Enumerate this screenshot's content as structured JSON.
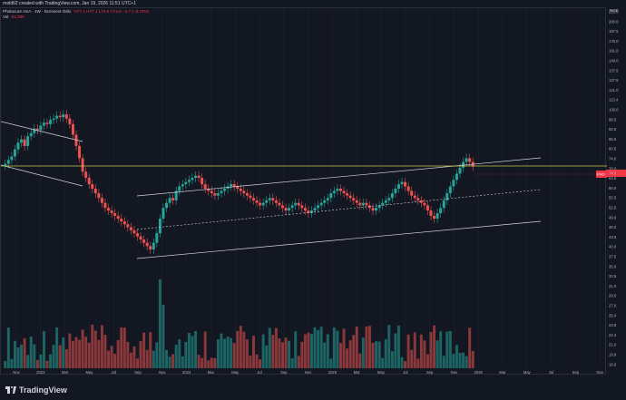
{
  "header": {
    "credit": "rnold62 created with TradingView.com, Jan 19, 2026 11:51 UTC+1",
    "symbol": "Photocure ASA · 1W · Euronext Oslo",
    "ohlc": "O77.1 H77.1 L74.6 C74.6 −2.7 (−3.73%)",
    "vol_label": "Vol",
    "vol_value": "51.38K"
  },
  "price_axis": {
    "currency": "NOK",
    "labels": [
      "215.0",
      "200.0",
      "187.5",
      "175.0",
      "161.0",
      "149.0",
      "137.5",
      "127.5",
      "121.0",
      "113.4",
      "106.0",
      "98.5",
      "92.5",
      "86.5",
      "80.5",
      "74.6",
      "70.0",
      "64.5",
      "60.0",
      "55.5",
      "52.5",
      "49.0",
      "46.0",
      "43.5",
      "40.0",
      "37.5",
      "35.0",
      "32.5",
      "31.0",
      "29.0",
      "27.0",
      "25.4",
      "23.9",
      "22.4",
      "21.0",
      "19.9",
      "18.9"
    ],
    "current_price_tag": "74.6",
    "current_symbol_tag": "PHO"
  },
  "time_axis": {
    "labels": [
      "Nov",
      "2023",
      "Mar",
      "May",
      "Jul",
      "Sep",
      "Nov",
      "2024",
      "Mar",
      "May",
      "Jul",
      "Sep",
      "Nov",
      "2025",
      "Mar",
      "May",
      "Jul",
      "Sep",
      "Nov",
      "2026",
      "Mar",
      "May",
      "Jul",
      "Sep",
      "Nov"
    ]
  },
  "colors": {
    "background": "#131722",
    "up": "#26a69a",
    "down": "#ef5350",
    "trend_line": "#d1d4dc",
    "horizontal_line": "#c8c84a",
    "last_price_tag": "#f23645"
  },
  "footer": {
    "brand": "TradingView"
  },
  "chart_data": {
    "type": "candlestick",
    "title": "",
    "price_range_approx": [
      38,
      215
    ],
    "candle_closes": [
      76,
      78,
      80,
      84,
      88,
      90,
      86,
      92,
      94,
      97,
      96,
      99,
      101,
      100,
      103,
      104,
      106,
      105,
      107,
      104,
      100,
      93,
      86,
      79,
      72,
      69,
      66,
      64,
      62,
      60,
      58,
      56,
      55,
      54,
      53,
      52,
      51,
      50,
      49,
      48,
      47,
      46,
      45,
      44,
      43,
      42,
      44,
      47,
      52,
      56,
      58,
      60,
      59,
      63,
      65,
      66,
      67,
      68,
      69,
      70,
      69,
      66,
      64,
      63,
      62,
      61,
      62,
      63,
      64,
      65,
      66,
      65,
      64,
      63,
      62,
      61,
      60,
      59,
      58,
      57,
      58,
      59,
      60,
      59,
      58,
      57,
      56,
      55,
      56,
      57,
      58,
      57,
      56,
      55,
      54,
      55,
      56,
      57,
      58,
      59,
      60,
      62,
      63,
      64,
      63,
      62,
      61,
      60,
      59,
      58,
      57,
      58,
      57,
      56,
      55,
      56,
      57,
      58,
      59,
      60,
      62,
      64,
      66,
      67,
      65,
      63,
      61,
      60,
      59,
      58,
      57,
      55,
      53,
      52,
      54,
      56,
      59,
      62,
      65,
      68,
      71,
      74,
      77,
      79,
      77,
      74.6
    ],
    "annotations": [
      "ascending channel (trend lines)",
      "dotted mid-line",
      "horizontal line at ~80.5"
    ]
  }
}
